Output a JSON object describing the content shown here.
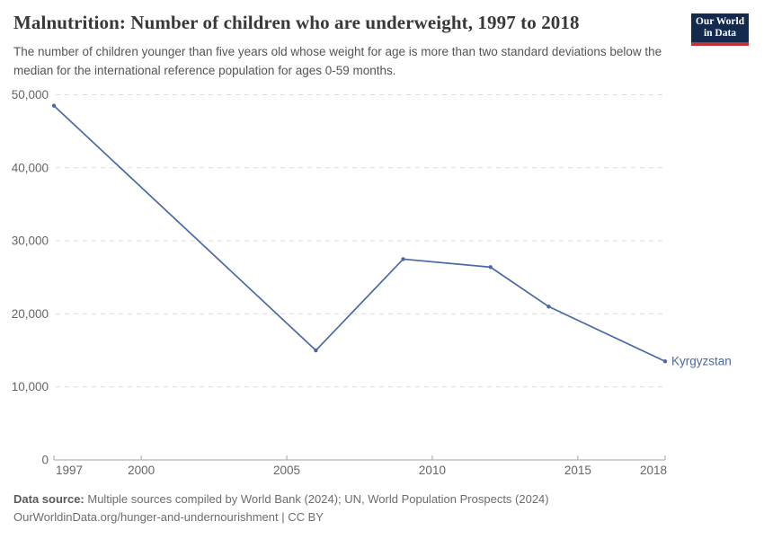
{
  "header": {
    "title": "Malnutrition: Number of children who are underweight, 1997 to 2018",
    "subtitle": "The number of children younger than five years old whose weight for age is more than two standard deviations below the median for the international reference population for ages 0-59 months.",
    "logo": {
      "line1": "Our World",
      "line2": "in Data"
    }
  },
  "chart_data": {
    "type": "line",
    "title": "Malnutrition: Number of children who are underweight, 1997 to 2018",
    "xlabel": "",
    "ylabel": "",
    "xlim": [
      1997,
      2018
    ],
    "ylim": [
      0,
      50000
    ],
    "grid": "horizontal-dashed",
    "legend_position": "end-of-line-label",
    "series": [
      {
        "name": "Kyrgyzstan",
        "x": [
          1997,
          2006,
          2009,
          2012,
          2014,
          2018
        ],
        "values": [
          48500,
          15000,
          27500,
          26400,
          21000,
          13500
        ],
        "color": "#4a69a8"
      }
    ],
    "xticks": {
      "values": [
        1997,
        2000,
        2005,
        2010,
        2015,
        2018
      ],
      "labels": [
        "1997",
        "2000",
        "2005",
        "2010",
        "2015",
        "2018"
      ]
    },
    "yticks": {
      "values": [
        0,
        10000,
        20000,
        30000,
        40000,
        50000
      ],
      "labels": [
        "0",
        "10,000",
        "20,000",
        "30,000",
        "40,000",
        "50,000"
      ]
    }
  },
  "footer": {
    "datasource_label": "Data source:",
    "datasource_text": " Multiple sources compiled by World Bank (2024); UN, World Population Prospects (2024)",
    "link_text": "OurWorldinData.org/hunger-and-undernourishment | CC BY"
  },
  "colors": {
    "line": "#4a69a8",
    "grid": "#dcdcdc",
    "axis": "#a3a3a3",
    "tick_text": "#666666",
    "title": "#383838",
    "subtitle": "#555555",
    "logo_bg": "#132a4e",
    "logo_red": "#c0333b"
  }
}
